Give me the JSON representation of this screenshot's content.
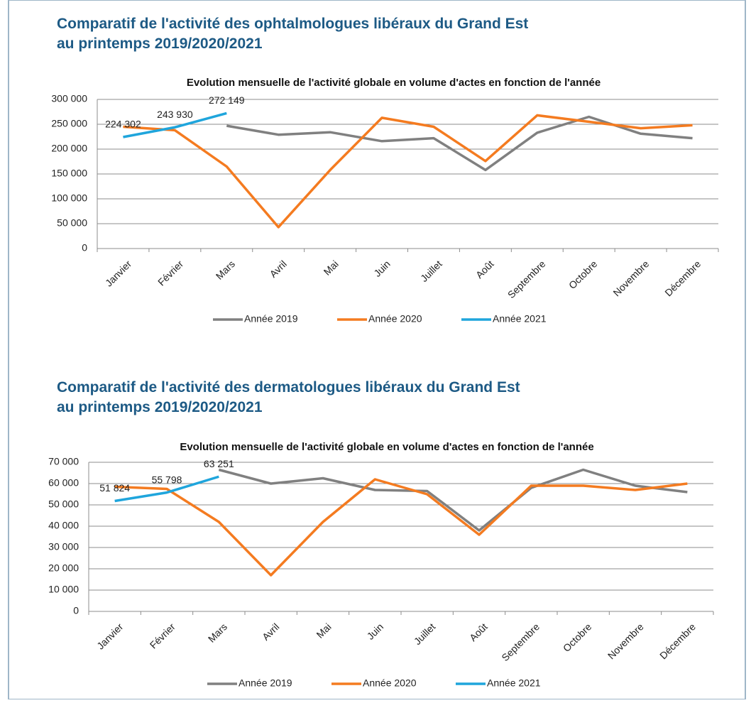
{
  "headings": [
    [
      "Comparatif de l'activité des ophtalmologues libéraux du Grand Est",
      "au printemps 2019/2020/2021"
    ],
    [
      "Comparatif de l'activité des dermatologues libéraux du Grand Est",
      "au printemps 2019/2020/2021"
    ]
  ],
  "chart_data": [
    {
      "type": "line",
      "title": "Evolution mensuelle de l'activité globale en volume d'actes en fonction de l'année",
      "categories": [
        "Janvier",
        "Février",
        "Mars",
        "Avril",
        "Mai",
        "Juin",
        "Juillet",
        "Août",
        "Septembre",
        "Octobre",
        "Novembre",
        "Décembre"
      ],
      "ylim": [
        0,
        300000
      ],
      "yticks": [
        0,
        {
          "value": 50000,
          "label": "50 000"
        },
        {
          "value": 100000,
          "label": "100 000"
        },
        {
          "value": 150000,
          "label": "150 000"
        },
        {
          "value": 200000,
          "label": "200 000"
        },
        {
          "value": 250000,
          "label": "250 000"
        },
        {
          "value": 300000,
          "label": "300 000"
        }
      ],
      "grid": true,
      "series": [
        {
          "name": "Année 2019",
          "color": "#808080",
          "values": [
            null,
            null,
            247000,
            229000,
            234000,
            216000,
            222000,
            158000,
            233000,
            265000,
            231000,
            222000
          ]
        },
        {
          "name": "Année 2020",
          "color": "#f47b20",
          "values": [
            245000,
            238000,
            165000,
            43000,
            158000,
            263000,
            245000,
            176000,
            268000,
            255000,
            242000,
            248000
          ]
        },
        {
          "name": "Année 2021",
          "color": "#1fa5dc",
          "values": [
            224302,
            243930,
            272149,
            null,
            null,
            null,
            null,
            null,
            null,
            null,
            null,
            null
          ],
          "value_labels": [
            "224 302",
            "243 930",
            "272 149",
            null,
            null,
            null,
            null,
            null,
            null,
            null,
            null,
            null
          ]
        }
      ]
    },
    {
      "type": "line",
      "title": "Evolution mensuelle de l'activité globale en volume d'actes en fonction de l'année",
      "categories": [
        "Janvier",
        "Février",
        "Mars",
        "Avril",
        "Mai",
        "Juin",
        "Juillet",
        "Août",
        "Septembre",
        "Octobre",
        "Novembre",
        "Décembre"
      ],
      "ylim": [
        0,
        70000
      ],
      "yticks": [
        0,
        {
          "value": 10000,
          "label": "10 000"
        },
        {
          "value": 20000,
          "label": "20 000"
        },
        {
          "value": 30000,
          "label": "30 000"
        },
        {
          "value": 40000,
          "label": "40 000"
        },
        {
          "value": 50000,
          "label": "50 000"
        },
        {
          "value": 60000,
          "label": "60 000"
        },
        {
          "value": 70000,
          "label": "70 000"
        }
      ],
      "grid": true,
      "series": [
        {
          "name": "Année 2019",
          "color": "#808080",
          "values": [
            null,
            null,
            66500,
            60000,
            62500,
            57000,
            56500,
            38000,
            58000,
            66500,
            59000,
            56000
          ]
        },
        {
          "name": "Année 2020",
          "color": "#f47b20",
          "values": [
            58500,
            57500,
            42000,
            17000,
            42000,
            62000,
            55000,
            36000,
            59000,
            59000,
            57000,
            60000
          ]
        },
        {
          "name": "Année 2021",
          "color": "#1fa5dc",
          "values": [
            51824,
            55798,
            63251,
            null,
            null,
            null,
            null,
            null,
            null,
            null,
            null,
            null
          ],
          "value_labels": [
            "51 824",
            "55 798",
            "63 251",
            null,
            null,
            null,
            null,
            null,
            null,
            null,
            null,
            null
          ]
        }
      ]
    }
  ]
}
